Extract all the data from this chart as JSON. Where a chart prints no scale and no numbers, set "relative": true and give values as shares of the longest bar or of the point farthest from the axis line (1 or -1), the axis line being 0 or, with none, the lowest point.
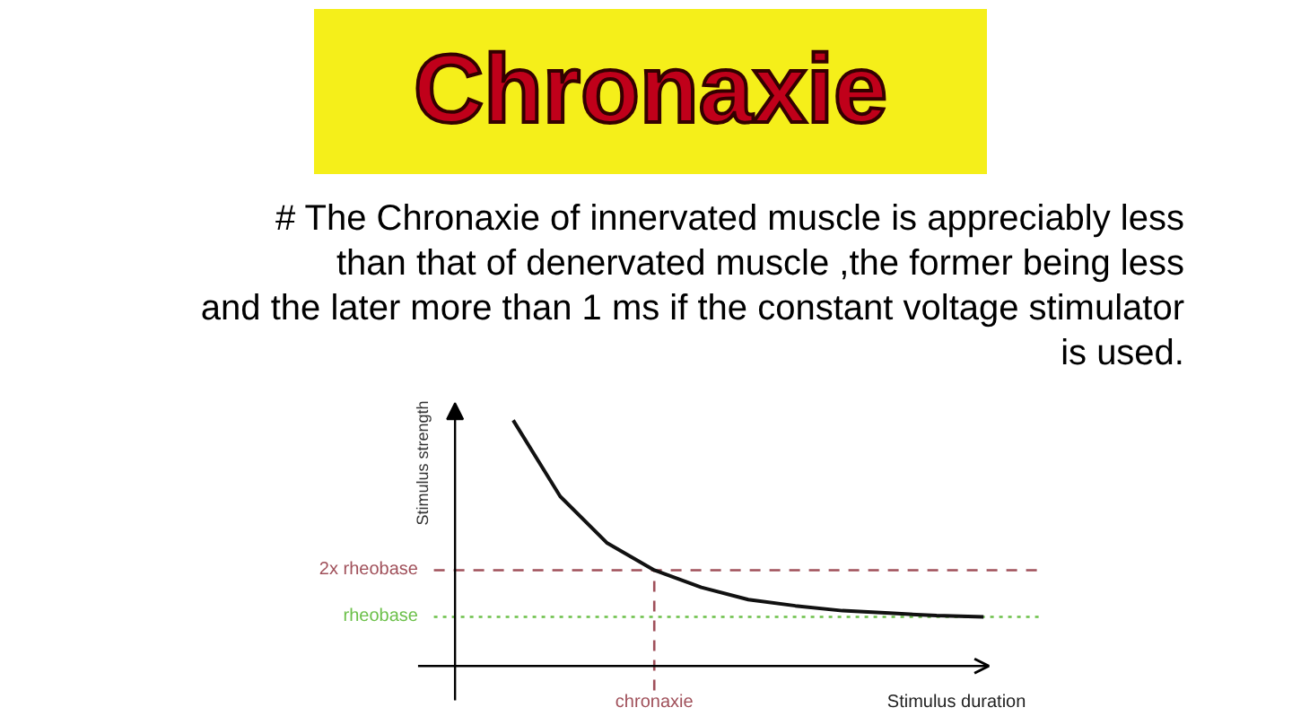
{
  "chart_data": {
    "type": "line",
    "title": "Chronaxie",
    "subtitle": "# The Chronaxie of innervated muscle is  appreciably less\nthan that of denervated muscle ,the former being less\nand the later more than 1 ms if the constant voltage stimulator\nis used.",
    "xlabel": "Stimulus duration",
    "ylabel": "Stimulus strength",
    "relative": true,
    "categories": [
      null,
      null,
      null,
      null,
      null,
      null,
      null,
      null,
      null,
      null,
      null
    ],
    "grid": false,
    "marker": "none",
    "line_style": "solid",
    "series": [
      {
        "color": "#111111",
        "values": [
          1.0,
          0.69,
          0.5,
          0.39,
          0.32,
          0.27,
          0.245,
          0.225,
          0.215,
          0.205,
          0.2
        ]
      }
    ],
    "ref_lines": [
      {
        "axis": "y",
        "value": 0.39,
        "label": "2x rheobase",
        "color": "#a0505a",
        "line_style": "dashed"
      },
      {
        "axis": "y",
        "value": 0.2,
        "label": "rheobase",
        "color": "#6cc04a",
        "line_style": "dotted"
      },
      {
        "axis": "x",
        "label": "chronaxie",
        "color": "#a0505a",
        "line_style": "dashed"
      }
    ]
  }
}
